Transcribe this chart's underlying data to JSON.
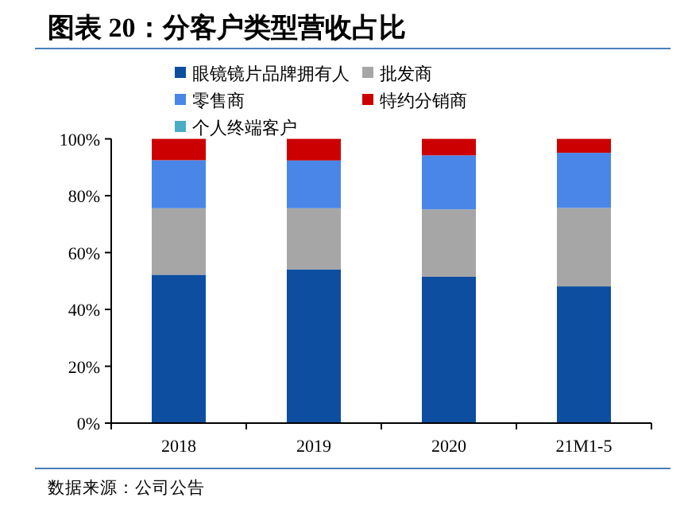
{
  "chart_data": {
    "type": "bar",
    "stacked": true,
    "title": "图表 20：分客户类型营收占比",
    "categories": [
      "2018",
      "2019",
      "2020",
      "21M1-5"
    ],
    "series": [
      {
        "name": "眼镜镜片品牌拥有人",
        "color": "#0d4ea0",
        "values": [
          52.2,
          54.1,
          51.5,
          48.1
        ]
      },
      {
        "name": "批发商",
        "color": "#a6a6a6",
        "values": [
          23.4,
          21.5,
          23.7,
          27.6
        ]
      },
      {
        "name": "零售商",
        "color": "#4a86e8",
        "values": [
          16.9,
          16.8,
          19.0,
          19.4
        ]
      },
      {
        "name": "特约分销商",
        "color": "#cc0000",
        "values": [
          7.5,
          7.6,
          5.8,
          4.9
        ]
      },
      {
        "name": "个人终端客户",
        "color": "#4bacc6",
        "values": [
          0,
          0,
          0,
          0
        ]
      }
    ],
    "ylim": [
      0,
      100
    ],
    "yticks": [
      {
        "value": 0,
        "label": "0%"
      },
      {
        "value": 20,
        "label": "20%"
      },
      {
        "value": 40,
        "label": "40%"
      },
      {
        "value": 60,
        "label": "60%"
      },
      {
        "value": 80,
        "label": "80%"
      },
      {
        "value": 100,
        "label": "100%"
      }
    ],
    "legend": "top",
    "grid": false,
    "annotations": [
      "数据来源：公司公告"
    ]
  }
}
